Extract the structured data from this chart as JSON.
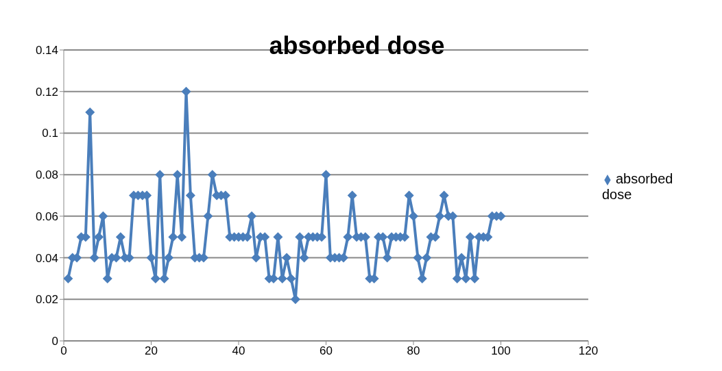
{
  "chart_data": {
    "type": "line",
    "title": "absorbed dose",
    "x": [
      1,
      2,
      3,
      4,
      5,
      6,
      7,
      8,
      9,
      10,
      11,
      12,
      13,
      14,
      15,
      16,
      17,
      18,
      19,
      20,
      21,
      22,
      23,
      24,
      25,
      26,
      27,
      28,
      29,
      30,
      31,
      32,
      33,
      34,
      35,
      36,
      37,
      38,
      39,
      40,
      41,
      42,
      43,
      44,
      45,
      46,
      47,
      48,
      49,
      50,
      51,
      52,
      53,
      54,
      55,
      56,
      57,
      58,
      59,
      60,
      61,
      62,
      63,
      64,
      65,
      66,
      67,
      68,
      69,
      70,
      71,
      72,
      73,
      74,
      75,
      76,
      77,
      78,
      79,
      80,
      81,
      82,
      83,
      84,
      85,
      86,
      87,
      88,
      89,
      90,
      91,
      92,
      93,
      94,
      95,
      96,
      97,
      98,
      99,
      100
    ],
    "series": [
      {
        "name": "absorbed dose",
        "color": "#4a7ebb",
        "values": [
          0.03,
          0.04,
          0.04,
          0.05,
          0.05,
          0.11,
          0.04,
          0.05,
          0.06,
          0.03,
          0.04,
          0.04,
          0.05,
          0.04,
          0.04,
          0.07,
          0.07,
          0.07,
          0.07,
          0.04,
          0.03,
          0.08,
          0.03,
          0.04,
          0.05,
          0.08,
          0.05,
          0.12,
          0.07,
          0.04,
          0.04,
          0.04,
          0.06,
          0.08,
          0.07,
          0.07,
          0.07,
          0.05,
          0.05,
          0.05,
          0.05,
          0.05,
          0.06,
          0.04,
          0.05,
          0.05,
          0.03,
          0.03,
          0.05,
          0.03,
          0.04,
          0.03,
          0.02,
          0.05,
          0.04,
          0.05,
          0.05,
          0.05,
          0.05,
          0.08,
          0.04,
          0.04,
          0.04,
          0.04,
          0.05,
          0.07,
          0.05,
          0.05,
          0.05,
          0.03,
          0.03,
          0.05,
          0.05,
          0.04,
          0.05,
          0.05,
          0.05,
          0.05,
          0.07,
          0.06,
          0.04,
          0.03,
          0.04,
          0.05,
          0.05,
          0.06,
          0.07,
          0.06,
          0.06,
          0.03,
          0.04,
          0.03,
          0.05,
          0.03,
          0.05,
          0.05,
          0.05,
          0.06,
          0.06,
          0.06
        ]
      }
    ],
    "xlim": [
      0,
      120
    ],
    "xticks": [
      0,
      20,
      40,
      60,
      80,
      100,
      120
    ],
    "ylim": [
      0,
      0.14
    ],
    "yticks": [
      0,
      0.02,
      0.04,
      0.06,
      0.08,
      0.1,
      0.12,
      0.14
    ],
    "grid": "y",
    "legend": "right",
    "marker": "diamond",
    "line_style": "solid"
  }
}
